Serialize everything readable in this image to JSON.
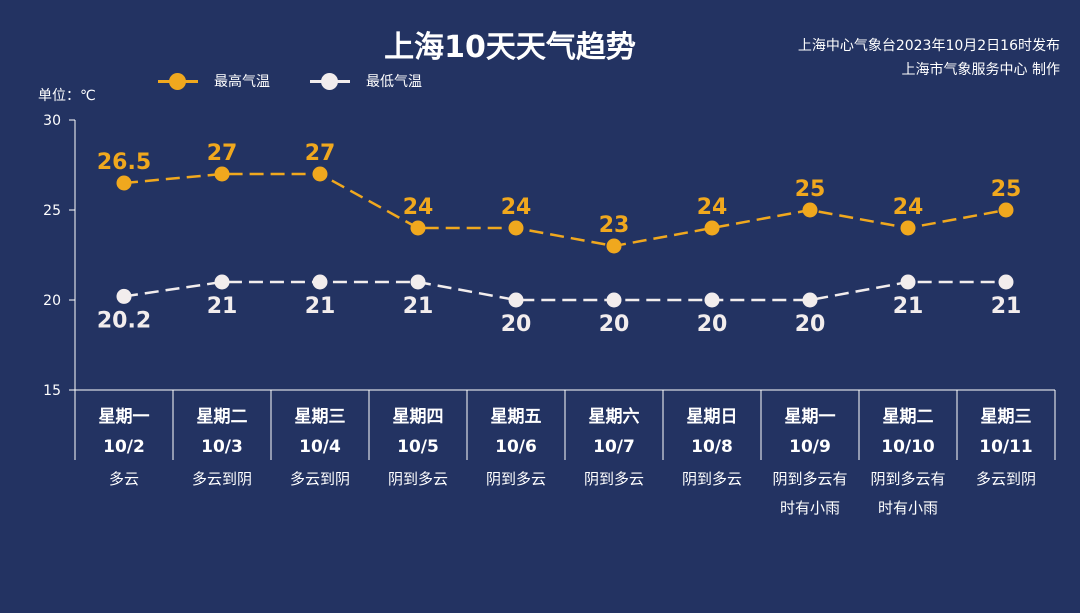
{
  "header": {
    "title": "上海10天天气趋势",
    "publisher_line1": "上海中心气象台2023年10月2日16时发布",
    "publisher_line2": "上海市气象服务中心 制作"
  },
  "legend": {
    "high_label": "最高气温",
    "low_label": "最低气温",
    "placement": "top-left"
  },
  "unit_label": "单位：℃",
  "colors": {
    "background": "#233362",
    "high": "#f0a81e",
    "low": "#f2eded",
    "axis": "#ffffff"
  },
  "chart_data": {
    "type": "line",
    "title": "上海10天天气趋势",
    "ylabel": "单位：℃",
    "ylim": [
      15,
      30
    ],
    "yticks": [
      15,
      20,
      25,
      30
    ],
    "grid": false,
    "categories": [
      "10/2",
      "10/3",
      "10/4",
      "10/5",
      "10/6",
      "10/7",
      "10/8",
      "10/9",
      "10/10",
      "10/11"
    ],
    "weekdays": [
      "星期一",
      "星期二",
      "星期三",
      "星期四",
      "星期五",
      "星期六",
      "星期日",
      "星期一",
      "星期二",
      "星期三"
    ],
    "weather": [
      [
        "多云"
      ],
      [
        "多云到阴"
      ],
      [
        "多云到阴"
      ],
      [
        "阴到多云"
      ],
      [
        "阴到多云"
      ],
      [
        "阴到多云"
      ],
      [
        "阴到多云"
      ],
      [
        "阴到多云有",
        "时有小雨"
      ],
      [
        "阴到多云有",
        "时有小雨"
      ],
      [
        "多云到阴"
      ]
    ],
    "series": [
      {
        "name": "最高气温",
        "values": [
          26.5,
          27,
          27,
          24,
          24,
          23,
          24,
          25,
          24,
          25
        ]
      },
      {
        "name": "最低气温",
        "values": [
          20.2,
          21,
          21,
          21,
          20,
          20,
          20,
          20,
          21,
          21
        ]
      }
    ]
  }
}
